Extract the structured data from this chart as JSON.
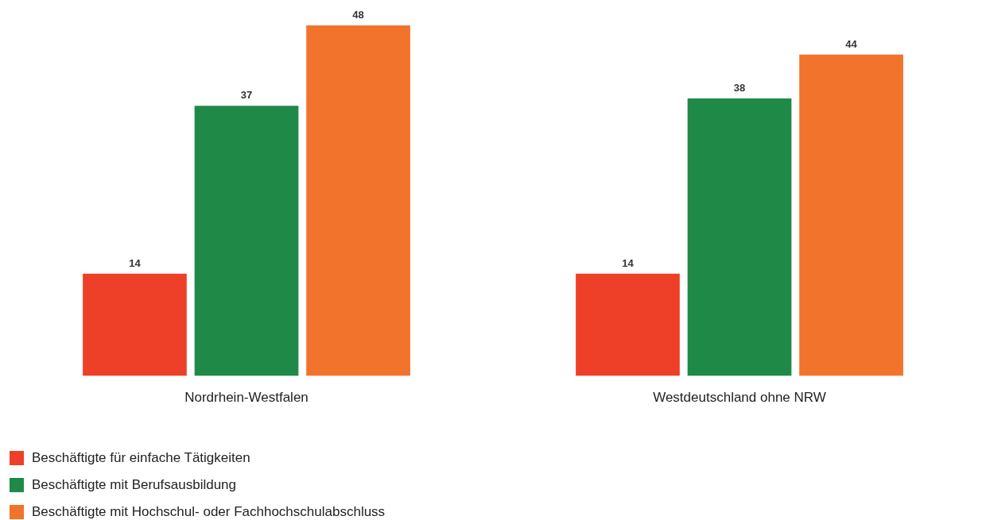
{
  "chart_data": {
    "type": "bar",
    "categories": [
      "Nordrhein-Westfalen",
      "Westdeutschland ohne NRW"
    ],
    "series": [
      {
        "name": "Beschäftigte für einfache Tätigkeiten",
        "color": "#ee4029",
        "values": [
          14,
          14
        ]
      },
      {
        "name": "Beschäftigte mit Berufsausbildung",
        "color": "#1f8a47",
        "values": [
          37,
          38
        ]
      },
      {
        "name": "Beschäftigte mit Hochschul- oder Fachhochschulabschluss",
        "color": "#f2732b",
        "values": [
          48,
          44
        ]
      }
    ],
    "data_labels": true,
    "legend": "bottom left",
    "grid": false
  }
}
